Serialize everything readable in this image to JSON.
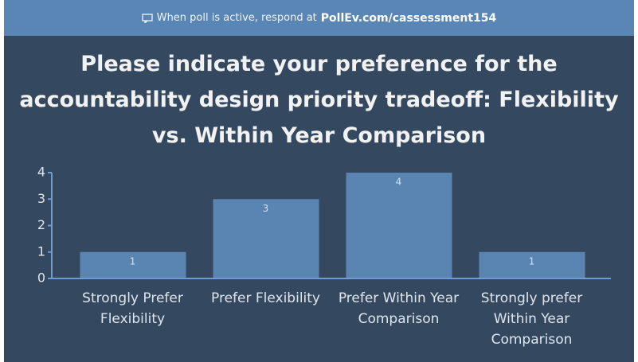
{
  "banner": {
    "prefix": "When poll is active, respond at",
    "link": "PollEv.com/cassessment154"
  },
  "chart_data": {
    "type": "bar",
    "title": "Please indicate your preference for the accountability design priority tradeoff: Flexibility vs. Within Year Comparison",
    "categories": [
      "Strongly Prefer Flexibility",
      "Prefer Flexibility",
      "Prefer Within Year Comparison",
      "Strongly prefer Within Year Comparison"
    ],
    "values": [
      1,
      3,
      4,
      1
    ],
    "color": "#5a84b2",
    "ylim": [
      0,
      4
    ],
    "yticks": [
      0,
      1,
      2,
      3,
      4
    ]
  }
}
